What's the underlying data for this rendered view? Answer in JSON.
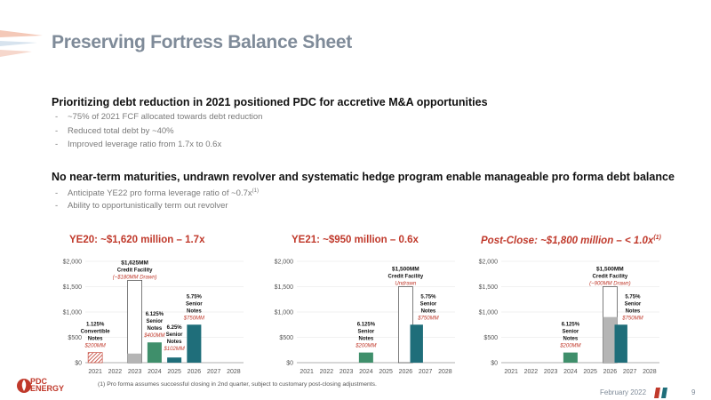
{
  "slide": {
    "title": "Preserving Fortress Balance Sheet",
    "section1": {
      "heading": "Prioritizing debt reduction in 2021 positioned PDC for accretive M&A opportunities",
      "bullets": [
        "~75% of 2021 FCF allocated towards debt reduction",
        "Reduced total debt by ~40%",
        "Improved leverage ratio from 1.7x to 0.6x"
      ]
    },
    "section2": {
      "heading": "No near-term maturities, undrawn revolver and systematic hedge program enable manageable pro forma debt balance",
      "bullets": [
        "Anticipate YE22 pro forma leverage ratio of ~0.7x",
        "Ability to opportunistically term out revolver"
      ],
      "bullet1_sup": "(1)"
    },
    "footnote": "(1) Pro forma assumes successful closing in 2nd quarter, subject to customary post-closing adjustments.",
    "date": "February 2022",
    "page_number": "9",
    "logo": {
      "line1": "PDC",
      "line2": "ENERGY"
    },
    "dash": "-"
  },
  "colors": {
    "accent": "#c0392b",
    "title": "#7f8b99",
    "green_bar": "#3f8f6b",
    "teal_bar": "#1f6e7a",
    "grey_bar": "#b5b5b5"
  },
  "chart_data": [
    {
      "type": "bar",
      "heading": "YE20: ~$1,620 million – 1.7x",
      "categories": [
        "2021",
        "2022",
        "2023",
        "2024",
        "2025",
        "2026",
        "2027",
        "2028"
      ],
      "yticks": [
        "$0",
        "$500",
        "$1,000",
        "$1,500",
        "$2,000"
      ],
      "ylim": [
        0,
        2000
      ],
      "bars": [
        {
          "cat": "2021",
          "value": 200,
          "style": "hatch",
          "labels": [
            "1.125%",
            "Convertible",
            "Notes"
          ],
          "sub": "$200MM"
        },
        {
          "cat": "2023",
          "value": 1625,
          "drawn": 180,
          "style": "facility",
          "labels": [
            "$1,625MM",
            "Credit Facility"
          ],
          "sub": "(~$180MM Drawn)"
        },
        {
          "cat": "2024",
          "value": 400,
          "style": "green",
          "labels": [
            "6.125%",
            "Senior",
            "Notes"
          ],
          "sub": "$400MM"
        },
        {
          "cat": "2025",
          "value": 102,
          "style": "teal",
          "labels": [
            "6.25%",
            "Senior",
            "Notes"
          ],
          "sub": "$102MM"
        },
        {
          "cat": "2026",
          "value": 750,
          "style": "teal",
          "labels": [
            "5.75%",
            "Senior",
            "Notes"
          ],
          "sub": "$750MM"
        }
      ]
    },
    {
      "type": "bar",
      "heading": "YE21: ~$950 million – 0.6x",
      "categories": [
        "2021",
        "2022",
        "2023",
        "2024",
        "2025",
        "2026",
        "2027",
        "2028"
      ],
      "yticks": [
        "$0",
        "$500",
        "$1,000",
        "$1,500",
        "$2,000"
      ],
      "ylim": [
        0,
        2000
      ],
      "bars": [
        {
          "cat": "2024",
          "value": 200,
          "style": "green",
          "labels": [
            "6.125%",
            "Senior",
            "Notes"
          ],
          "sub": "$200MM"
        },
        {
          "cat": "2026",
          "value": 1500,
          "drawn": 0,
          "style": "facility",
          "labels": [
            "$1,500MM",
            "Credit Facility"
          ],
          "sub": "Undrawn"
        },
        {
          "cat": "2026",
          "value": 750,
          "style": "teal-overlay",
          "labels": [
            "5.75%",
            "Senior",
            "Notes"
          ],
          "sub": "$750MM"
        }
      ]
    },
    {
      "type": "bar",
      "heading": "Post-Close: ~$1,800 million – < 1.0x",
      "heading_sup": "(1)",
      "categories": [
        "2021",
        "2022",
        "2023",
        "2024",
        "2025",
        "2026",
        "2027",
        "2028"
      ],
      "yticks": [
        "$0",
        "$500",
        "$1,000",
        "$1,500",
        "$2,000"
      ],
      "ylim": [
        0,
        2000
      ],
      "bars": [
        {
          "cat": "2024",
          "value": 200,
          "style": "green",
          "labels": [
            "6.125%",
            "Senior",
            "Notes"
          ],
          "sub": "$200MM"
        },
        {
          "cat": "2026",
          "value": 1500,
          "drawn": 900,
          "style": "facility",
          "labels": [
            "$1,500MM",
            "Credit Facility"
          ],
          "sub": "(~900MM Drawn)"
        },
        {
          "cat": "2026",
          "value": 750,
          "style": "teal-overlay",
          "labels": [
            "5.75%",
            "Senior",
            "Notes"
          ],
          "sub": "$750MM"
        }
      ]
    }
  ]
}
